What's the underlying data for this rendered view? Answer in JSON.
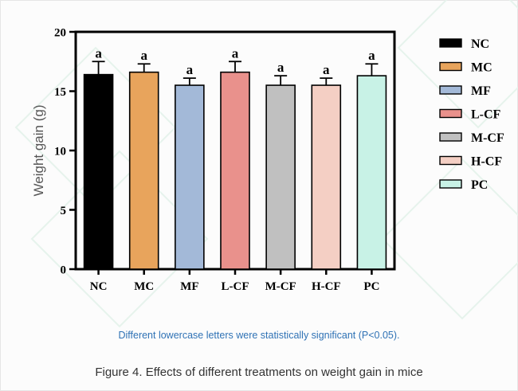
{
  "chart_data": {
    "type": "bar",
    "categories": [
      "NC",
      "MC",
      "MF",
      "L-CF",
      "M-CF",
      "H-CF",
      "PC"
    ],
    "values": [
      16.4,
      16.6,
      15.5,
      16.6,
      15.5,
      15.5,
      16.3
    ],
    "errors": [
      1.1,
      0.7,
      0.6,
      0.9,
      0.8,
      0.6,
      1.0
    ],
    "significance_letters": [
      "a",
      "a",
      "a",
      "a",
      "a",
      "a",
      "a"
    ],
    "colors": [
      "#000000",
      "#e8a45c",
      "#a3b9d8",
      "#e9918c",
      "#c0c0c0",
      "#f4cfc4",
      "#c8f2e6"
    ],
    "ylabel": "Weight gain (g)",
    "xlabel": "",
    "ylim": [
      0,
      20
    ],
    "yticks": [
      0,
      5,
      10,
      15,
      20
    ],
    "legend_position": "right",
    "grid": false
  },
  "note": "Different lowercase letters were statistically significant (P<0.05).",
  "caption": "Figure 4. Effects of different treatments on weight gain in mice"
}
